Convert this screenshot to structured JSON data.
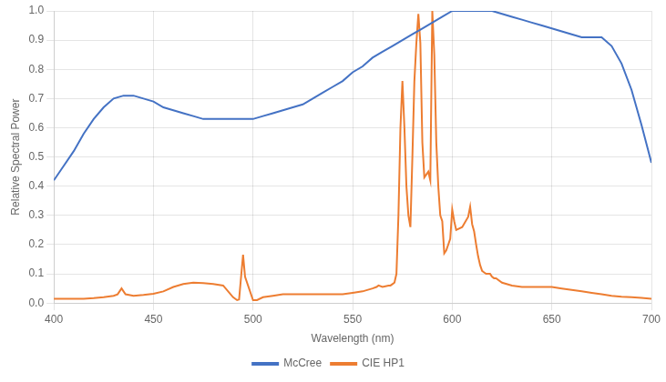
{
  "chart_data": {
    "type": "line",
    "xlabel": "Wavelength (nm)",
    "ylabel": "Relative Spectral Power",
    "xlim": [
      400,
      700
    ],
    "ylim": [
      0.0,
      1.0
    ],
    "xticks": [
      400,
      450,
      500,
      550,
      600,
      650,
      700
    ],
    "yticks": [
      {
        "value": 0.0,
        "label": "0.0"
      },
      0.1,
      0.2,
      0.3,
      0.4,
      0.5,
      0.6,
      0.7,
      0.8,
      0.9,
      {
        "value": 1.0,
        "label": "1.0"
      }
    ],
    "grid": true,
    "legend": "bottom",
    "series": [
      {
        "name": "McCree",
        "color": "#4472C4",
        "x": [
          400,
          405,
          410,
          415,
          420,
          425,
          430,
          435,
          440,
          445,
          450,
          455,
          460,
          465,
          470,
          475,
          480,
          485,
          490,
          495,
          500,
          505,
          510,
          515,
          520,
          525,
          530,
          535,
          540,
          545,
          550,
          555,
          560,
          565,
          570,
          575,
          580,
          585,
          590,
          595,
          600,
          605,
          610,
          615,
          620,
          625,
          630,
          635,
          640,
          645,
          650,
          655,
          660,
          665,
          670,
          675,
          680,
          685,
          690,
          695,
          700
        ],
        "values": [
          0.42,
          0.47,
          0.52,
          0.58,
          0.63,
          0.67,
          0.7,
          0.71,
          0.71,
          0.7,
          0.69,
          0.67,
          0.66,
          0.65,
          0.64,
          0.63,
          0.63,
          0.63,
          0.63,
          0.63,
          0.63,
          0.64,
          0.65,
          0.66,
          0.67,
          0.68,
          0.7,
          0.72,
          0.74,
          0.76,
          0.79,
          0.81,
          0.84,
          0.86,
          0.88,
          0.9,
          0.92,
          0.94,
          0.96,
          0.98,
          1.0,
          1.0,
          1.0,
          1.0,
          1.0,
          0.99,
          0.98,
          0.97,
          0.96,
          0.95,
          0.94,
          0.93,
          0.92,
          0.91,
          0.91,
          0.91,
          0.88,
          0.82,
          0.73,
          0.61,
          0.48
        ]
      },
      {
        "name": "CIE HP1",
        "color": "#ED7D31",
        "x": [
          400,
          404,
          405,
          406,
          410,
          415,
          420,
          425,
          430,
          432,
          433,
          434,
          435,
          436,
          440,
          445,
          450,
          455,
          460,
          465,
          470,
          475,
          480,
          485,
          490,
          492,
          493,
          494,
          495,
          496,
          500,
          501,
          502,
          505,
          510,
          515,
          520,
          525,
          530,
          535,
          540,
          545,
          550,
          555,
          560,
          562,
          563,
          565,
          568,
          569,
          570,
          571,
          572,
          573,
          574,
          575,
          576,
          577,
          578,
          579,
          580,
          581,
          582,
          583,
          584,
          585,
          586,
          587,
          588,
          589,
          590,
          591,
          592,
          593,
          594,
          595,
          596,
          597,
          598,
          599,
          600,
          601,
          602,
          605,
          608,
          609,
          610,
          611,
          612,
          613,
          614,
          615,
          616,
          617,
          618,
          619,
          620,
          621,
          622,
          625,
          630,
          635,
          640,
          645,
          650,
          655,
          660,
          665,
          670,
          675,
          680,
          685,
          690,
          695,
          700
        ],
        "values": [
          0.015,
          0.015,
          0.015,
          0.015,
          0.015,
          0.015,
          0.017,
          0.02,
          0.025,
          0.03,
          0.04,
          0.05,
          0.04,
          0.03,
          0.025,
          0.028,
          0.032,
          0.04,
          0.055,
          0.065,
          0.07,
          0.068,
          0.065,
          0.06,
          0.02,
          0.01,
          0.012,
          0.09,
          0.165,
          0.09,
          0.01,
          0.01,
          0.01,
          0.02,
          0.025,
          0.03,
          0.03,
          0.03,
          0.03,
          0.03,
          0.03,
          0.03,
          0.035,
          0.04,
          0.05,
          0.055,
          0.06,
          0.055,
          0.06,
          0.06,
          0.065,
          0.07,
          0.1,
          0.3,
          0.6,
          0.76,
          0.6,
          0.4,
          0.3,
          0.26,
          0.5,
          0.76,
          0.89,
          0.99,
          0.89,
          0.55,
          0.43,
          0.44,
          0.45,
          0.42,
          1.0,
          0.85,
          0.55,
          0.4,
          0.3,
          0.28,
          0.17,
          0.18,
          0.2,
          0.22,
          0.32,
          0.28,
          0.25,
          0.26,
          0.295,
          0.33,
          0.27,
          0.245,
          0.2,
          0.16,
          0.13,
          0.11,
          0.105,
          0.1,
          0.1,
          0.1,
          0.09,
          0.085,
          0.085,
          0.07,
          0.06,
          0.055,
          0.055,
          0.055,
          0.055,
          0.05,
          0.045,
          0.04,
          0.035,
          0.03,
          0.025,
          0.022,
          0.02,
          0.018,
          0.015
        ]
      }
    ]
  }
}
